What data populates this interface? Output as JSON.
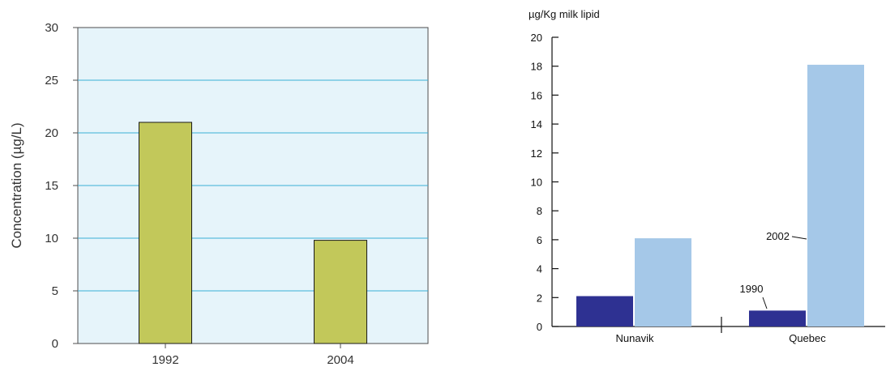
{
  "chart_data": [
    {
      "type": "bar",
      "categories": [
        "1992",
        "2004"
      ],
      "values": [
        21,
        9.8
      ],
      "ylabel": "Concentration (µg/L)",
      "ylim": [
        0,
        30
      ],
      "yticks": [
        "0",
        "5",
        "10",
        "15",
        "20",
        "25",
        "30"
      ],
      "grid": true,
      "colors": {
        "bar": "#c2c85a",
        "plot_bg": "#e6f4fa",
        "grid": "#3ab0d6"
      }
    },
    {
      "type": "bar",
      "categories": [
        "Nunavik",
        "Quebec"
      ],
      "series": [
        {
          "name": "1990",
          "values": [
            2.1,
            1.1
          ],
          "color": "#2e3192"
        },
        {
          "name": "2002",
          "values": [
            6.1,
            18.1
          ],
          "color": "#a5c8e8"
        }
      ],
      "unit_label": "µg/Kg milk lipid",
      "ylim": [
        0,
        20
      ],
      "yticks": [
        "0",
        "2",
        "4",
        "6",
        "8",
        "10",
        "12",
        "14",
        "16",
        "18",
        "20"
      ],
      "grid": false
    }
  ]
}
